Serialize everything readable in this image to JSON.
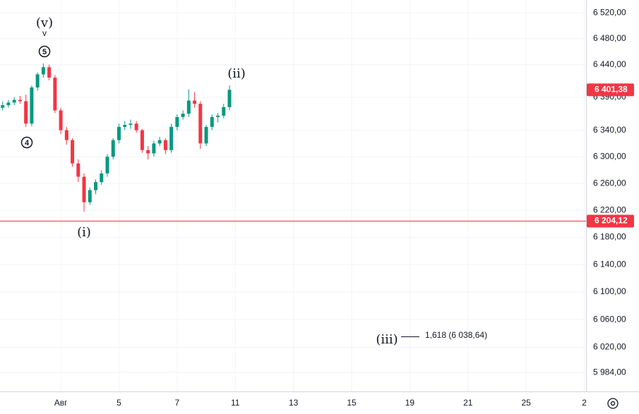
{
  "chart_data": {
    "type": "candlestick",
    "x": [
      -2.0,
      -1.8,
      -1.6,
      -1.4,
      -1.2,
      -1.0,
      -0.8,
      -0.6,
      -0.4,
      -0.2,
      0.0,
      0.2,
      0.4,
      0.6,
      0.8,
      1.0,
      1.2,
      1.4,
      1.6,
      1.8,
      2.0,
      2.2,
      2.4,
      2.6,
      2.8,
      3.0,
      3.2,
      3.4,
      3.6,
      3.8,
      4.0,
      4.2,
      4.4,
      4.6,
      4.8,
      5.0,
      5.2,
      5.4,
      5.6,
      5.8
    ],
    "open": [
      6374,
      6378,
      6382,
      6386,
      6384,
      6350,
      6405,
      6425,
      6436,
      6420,
      6370,
      6340,
      6325,
      6290,
      6270,
      6232,
      6250,
      6262,
      6275,
      6300,
      6325,
      6345,
      6348,
      6350,
      6340,
      6310,
      6305,
      6320,
      6325,
      6310,
      6345,
      6360,
      6365,
      6385,
      6380,
      6320,
      6345,
      6360,
      6362,
      6375
    ],
    "high": [
      6384,
      6386,
      6390,
      6392,
      6394,
      6408,
      6428,
      6442,
      6440,
      6424,
      6374,
      6345,
      6328,
      6296,
      6275,
      6254,
      6266,
      6280,
      6304,
      6328,
      6350,
      6354,
      6356,
      6354,
      6342,
      6316,
      6324,
      6330,
      6328,
      6350,
      6364,
      6370,
      6402,
      6398,
      6384,
      6348,
      6364,
      6366,
      6380,
      6408
    ],
    "low": [
      6370,
      6374,
      6378,
      6380,
      6345,
      6346,
      6400,
      6420,
      6416,
      6366,
      6334,
      6318,
      6285,
      6262,
      6218,
      6228,
      6244,
      6258,
      6270,
      6296,
      6320,
      6340,
      6342,
      6336,
      6306,
      6296,
      6300,
      6316,
      6304,
      6306,
      6340,
      6356,
      6360,
      6374,
      6312,
      6316,
      6340,
      6352,
      6358,
      6370
    ],
    "close": [
      6378,
      6382,
      6386,
      6384,
      6350,
      6405,
      6425,
      6436,
      6420,
      6370,
      6340,
      6325,
      6290,
      6270,
      6232,
      6250,
      6262,
      6275,
      6300,
      6325,
      6345,
      6348,
      6350,
      6340,
      6310,
      6305,
      6320,
      6325,
      6310,
      6345,
      6360,
      6365,
      6385,
      6380,
      6320,
      6345,
      6360,
      6362,
      6375,
      6401.38
    ],
    "up_color": "#089981",
    "down_color": "#f23645",
    "xlim": [
      -2.09,
      18.06
    ],
    "xticks": [
      {
        "value": 0,
        "label": "Авг"
      },
      {
        "value": 2,
        "label": "5"
      },
      {
        "value": 4,
        "label": "7"
      },
      {
        "value": 6,
        "label": "11"
      },
      {
        "value": 8,
        "label": "13"
      },
      {
        "value": 10,
        "label": "15"
      },
      {
        "value": 12,
        "label": "19"
      },
      {
        "value": 14,
        "label": "21"
      },
      {
        "value": 16,
        "label": "25"
      },
      {
        "value": 18,
        "label": "2"
      }
    ],
    "ylim": [
      5957,
      6540
    ],
    "log_scale": true,
    "grid": true,
    "yticks": [
      {
        "value": 6520,
        "label": "6 520,00"
      },
      {
        "value": 6480,
        "label": "6 480,00"
      },
      {
        "value": 6440,
        "label": "6 440,00"
      },
      {
        "value": 6390,
        "label": "6 390,00"
      },
      {
        "value": 6340,
        "label": "6 340,00"
      },
      {
        "value": 6300,
        "label": "6 300,00"
      },
      {
        "value": 6260,
        "label": "6 260,00"
      },
      {
        "value": 6220,
        "label": "6 220,00"
      },
      {
        "value": 6180,
        "label": "6 180,00"
      },
      {
        "value": 6140,
        "label": "6 140,00"
      },
      {
        "value": 6100,
        "label": "6 100,00"
      },
      {
        "value": 6060,
        "label": "6 060,00"
      },
      {
        "value": 6020,
        "label": "6 020,00"
      },
      {
        "value": 5984,
        "label": "5 984,00"
      }
    ],
    "last_price": {
      "value": 6401.38,
      "label": "6 401,38"
    },
    "level": {
      "value": 6204.12,
      "label": "6 204,12",
      "color": "#f23645"
    },
    "annotations": [
      "(v)",
      "v",
      "5",
      "4",
      "(i)",
      "(ii)",
      "(iii)",
      "1,618 (6 038,64)"
    ]
  }
}
